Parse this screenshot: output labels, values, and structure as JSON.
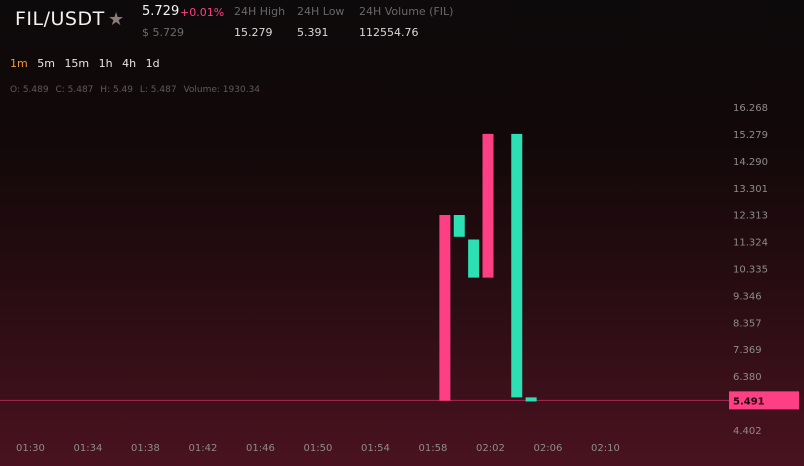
{
  "header": {
    "pair": "FIL/USDT",
    "price": "5.729",
    "change": "+0.01%",
    "usd_price": "$ 5.729",
    "stats": [
      {
        "label": "24H High",
        "value": "15.279"
      },
      {
        "label": "24H Low",
        "value": "5.391"
      },
      {
        "label": "24H Volume (FIL)",
        "value": "112554.76"
      }
    ]
  },
  "intervals": [
    "1m",
    "5m",
    "15m",
    "1h",
    "4h",
    "1d"
  ],
  "active_interval": "1m",
  "ohlc": {
    "open": "O: 5.489",
    "close": "C: 5.487",
    "high": "H: 5.49",
    "low": "L: 5.487",
    "volume": "Volume: 1930.34"
  },
  "colors": {
    "up": "#2de0b4",
    "down": "#ff3f83"
  },
  "chart_data": {
    "type": "candlestick",
    "y_ticks": [
      "16.268",
      "15.279",
      "14.290",
      "13.301",
      "12.313",
      "11.324",
      "10.335",
      "9.346",
      "8.357",
      "7.369",
      "6.380",
      "4.402"
    ],
    "x_ticks": [
      "01:30",
      "01:34",
      "01:38",
      "01:42",
      "01:46",
      "01:50",
      "01:54",
      "01:58",
      "02:02",
      "02:06",
      "02:10"
    ],
    "current_price": "5.491",
    "ylim": [
      4.402,
      16.268
    ],
    "candles": [
      {
        "time": "01:59",
        "open": 5.48,
        "close": 12.3,
        "color": "down"
      },
      {
        "time": "02:00",
        "open": 12.3,
        "close": 11.5,
        "color": "up"
      },
      {
        "time": "02:01",
        "open": 11.4,
        "close": 10.0,
        "color": "up"
      },
      {
        "time": "02:02",
        "open": 10.0,
        "close": 15.28,
        "color": "down"
      },
      {
        "time": "02:04",
        "open": 15.28,
        "close": 5.6,
        "color": "up"
      },
      {
        "time": "02:05",
        "open": 5.6,
        "close": 5.45,
        "color": "up"
      }
    ]
  }
}
